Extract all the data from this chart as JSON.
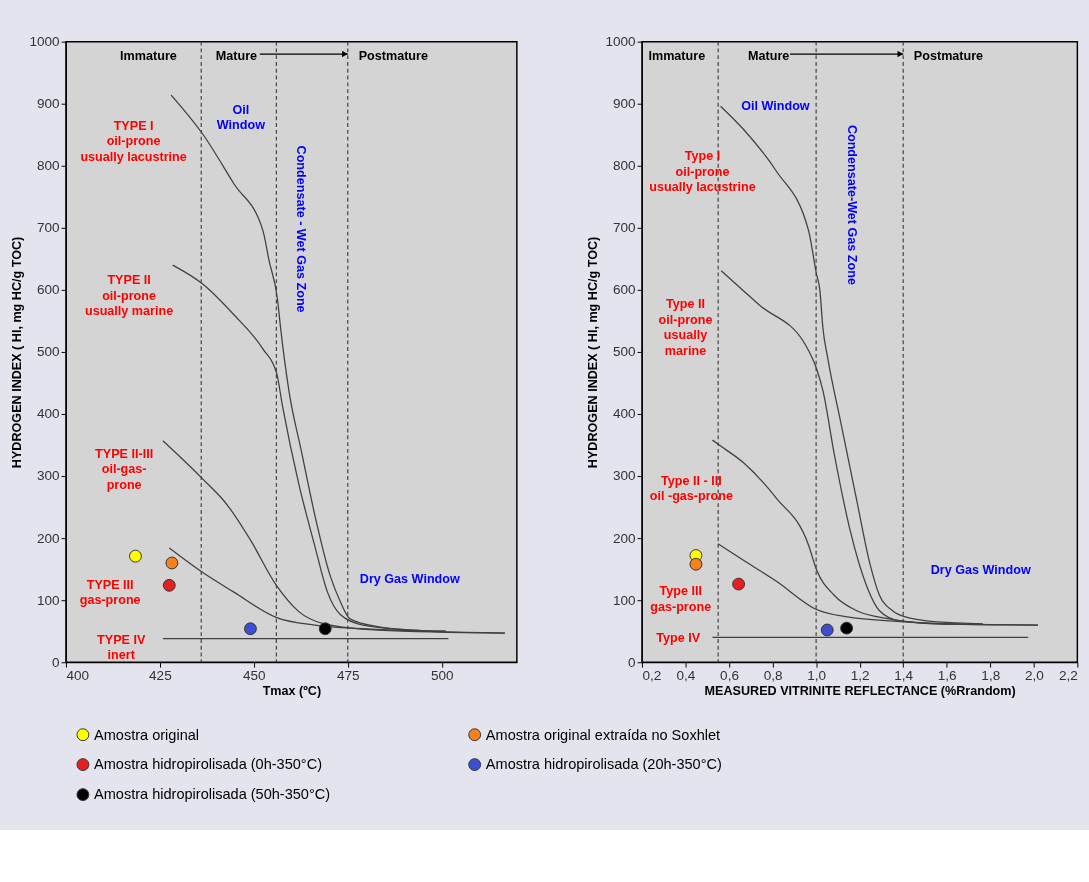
{
  "chart_data": [
    {
      "type": "line",
      "xlabel": "Tmax (ºC)",
      "ylabel": "HYDROGEN INDEX ( HI, mg HC/g TOC)",
      "xlim": [
        400,
        520
      ],
      "xticks": [
        400,
        425,
        450,
        475,
        500
      ],
      "ylim": [
        0,
        1000
      ],
      "yticks": [
        0,
        100,
        200,
        300,
        400,
        500,
        600,
        700,
        800,
        900,
        1000
      ],
      "legend": "bottom",
      "series": [
        {
          "color": "#404040",
          "marker": "none",
          "line_style": "solid",
          "x": [
            428,
            436.3,
            444.7,
            452.4,
            454.1,
            456.3,
            457.1,
            459.3,
            462.7,
            466.2,
            470.4,
            473,
            475.6,
            483.3,
            491.9,
            501
          ],
          "values": [
            914,
            852,
            771,
            696,
            646,
            585,
            540,
            439,
            339,
            238,
            138,
            98,
            70,
            57,
            52,
            50
          ]
        },
        {
          "color": "#404040",
          "marker": "none",
          "line_style": "solid",
          "x": [
            428.4,
            436.3,
            444.7,
            452.4,
            456.1,
            457.6,
            461.9,
            466.2,
            469.6,
            473,
            479,
            492,
            501
          ],
          "values": [
            640,
            610,
            560,
            505,
            465,
            414,
            289,
            188,
            113,
            77,
            60,
            52,
            50
          ]
        },
        {
          "color": "#404040",
          "marker": "none",
          "line_style": "solid",
          "x": [
            425.8,
            436.3,
            443,
            449,
            456.1,
            461.9,
            468.7,
            483,
            516.8
          ],
          "values": [
            357,
            296,
            253,
            198,
            123,
            82,
            62,
            52,
            47
          ]
        },
        {
          "color": "#404040",
          "marker": "none",
          "line_style": "solid",
          "x": [
            427.5,
            436.3,
            444.7,
            456.1,
            466.2,
            483,
            516.8
          ],
          "values": [
            184,
            145,
            113,
            72,
            60,
            53,
            47
          ]
        },
        {
          "color": "#404040",
          "marker": "none",
          "line_style": "solid",
          "x": [
            425.8,
            501.8
          ],
          "values": [
            38,
            38
          ]
        },
        {
          "type": "scatter",
          "name": "Amostra original",
          "color": "#ffff00",
          "marker": "circle",
          "x": [
            418.5
          ],
          "values": [
            171
          ]
        },
        {
          "type": "scatter",
          "name": "Amostra original extraída no Soxhlet",
          "color": "#f7801f",
          "marker": "circle",
          "x": [
            428.2
          ],
          "values": [
            160
          ]
        },
        {
          "type": "scatter",
          "name": "Amostra hidropirolisada (0h-350°C)",
          "color": "#e52020",
          "marker": "circle",
          "x": [
            427.5
          ],
          "values": [
            124
          ]
        },
        {
          "type": "scatter",
          "name": "Amostra hidropirolisada (20h-350°C)",
          "color": "#3c4fd0",
          "marker": "circle",
          "x": [
            449.1
          ],
          "values": [
            54
          ]
        },
        {
          "type": "scatter",
          "name": "Amostra hidropirolisada (50h-350°C)",
          "color": "#000000",
          "marker": "circle",
          "x": [
            469
          ],
          "values": [
            54
          ]
        }
      ],
      "ref_lines": [
        {
          "axis": "x",
          "value": 436,
          "color": "#404040",
          "line_style": "dashed"
        },
        {
          "axis": "x",
          "value": 456,
          "color": "#404040",
          "line_style": "dashed"
        },
        {
          "axis": "x",
          "value": 475,
          "color": "#404040",
          "line_style": "dashed"
        }
      ],
      "annotations": [
        "Immature",
        {
          "text": "Mature",
          "x": 475,
          "y": 980
        },
        "Postmature",
        "Oil\nWindow",
        "Condensate - Wet Gas Zone",
        "Dry Gas Window",
        "TYPE I\noil-prone\nusually lacustrine",
        "TYPE II\noil-prone\nusually marine",
        "TYPE II-III\noil-gas-\nprone",
        "TYPE III\ngas-prone",
        "TYPE IV\ninert"
      ]
    },
    {
      "type": "line",
      "xlabel": "MEASURED VITRINITE REFLECTANCE (%Rrandom)",
      "ylabel": "HYDROGEN INDEX ( HI, mg HC/g TOC)",
      "xlim": [
        0.2,
        2.2
      ],
      "xticks": [
        {
          "value": 0.2,
          "label": "0,2"
        },
        {
          "value": 0.4,
          "label": "0,4"
        },
        {
          "value": 0.6,
          "label": "0,6"
        },
        {
          "value": 0.8,
          "label": "0,8"
        },
        {
          "value": 1.0,
          "label": "1,0"
        },
        {
          "value": 1.2,
          "label": "1,2"
        },
        {
          "value": 1.4,
          "label": "1,4"
        },
        {
          "value": 1.6,
          "label": "1,6"
        },
        {
          "value": 1.8,
          "label": "1,8"
        },
        {
          "value": 2.0,
          "label": "2,0"
        },
        {
          "value": 2.2,
          "label": "2,2"
        }
      ],
      "ylim": [
        0,
        1000
      ],
      "yticks": [
        0,
        100,
        200,
        300,
        400,
        500,
        600,
        700,
        800,
        900,
        1000
      ],
      "legend": "bottom",
      "series": [
        {
          "color": "#404040",
          "marker": "none",
          "line_style": "solid",
          "x": [
            0.561,
            0.668,
            0.816,
            0.965,
            1.002,
            1.017,
            1.031,
            1.054,
            1.113,
            1.187,
            1.247,
            1.291,
            1.351,
            1.41,
            1.559,
            1.766
          ],
          "values": [
            896,
            858,
            792,
            696,
            625,
            600,
            539,
            489,
            387,
            260,
            159,
            108,
            83,
            73,
            65,
            62
          ]
        },
        {
          "color": "#404040",
          "marker": "none",
          "line_style": "solid",
          "x": [
            0.564,
            0.742,
            0.95,
            1.002,
            1.031,
            1.083,
            1.158,
            1.232,
            1.291,
            1.38,
            1.559,
            1.766
          ],
          "values": [
            631,
            575,
            512,
            473,
            438,
            336,
            210,
            123,
            83,
            67,
            62,
            61
          ]
        },
        {
          "color": "#404040",
          "marker": "none",
          "line_style": "solid",
          "x": [
            0.524,
            0.547,
            0.668,
            0.816,
            0.965,
            1.002,
            1.083,
            1.187,
            1.336,
            1.559,
            2.019
          ],
          "values": [
            358,
            352,
            321,
            265,
            189,
            149,
            108,
            83,
            70,
            62,
            60
          ]
        },
        {
          "color": "#404040",
          "marker": "none",
          "line_style": "solid",
          "x": [
            0.549,
            0.668,
            0.816,
            1.002,
            1.143,
            1.41,
            1.707,
            2.019
          ],
          "values": [
            191,
            164,
            131,
            85,
            73,
            65,
            61,
            60
          ]
        },
        {
          "color": "#404040",
          "marker": "none",
          "line_style": "solid",
          "x": [
            0.524,
            1.974
          ],
          "values": [
            40,
            40
          ]
        },
        {
          "type": "scatter",
          "name": "Amostra original",
          "color": "#ffff00",
          "marker": "circle",
          "x": [
            0.448
          ],
          "values": [
            172
          ]
        },
        {
          "type": "scatter",
          "name": "Amostra original extraída no Soxhlet",
          "color": "#f7801f",
          "marker": "circle",
          "x": [
            0.448
          ],
          "values": [
            158
          ]
        },
        {
          "type": "scatter",
          "name": "Amostra hidropirolisada (0h-350°C)",
          "color": "#e52020",
          "marker": "circle",
          "x": [
            0.644
          ],
          "values": [
            126
          ]
        },
        {
          "type": "scatter",
          "name": "Amostra hidropirolisada (20h-350°C)",
          "color": "#3c4fd0",
          "marker": "circle",
          "x": [
            1.051
          ],
          "values": [
            52
          ]
        },
        {
          "type": "scatter",
          "name": "Amostra hidropirolisada (50h-350°C)",
          "color": "#000000",
          "marker": "circle",
          "x": [
            1.14
          ],
          "values": [
            55
          ]
        }
      ],
      "ref_lines": [
        {
          "axis": "x",
          "value": 0.55,
          "color": "#404040",
          "line_style": "dashed"
        },
        {
          "axis": "x",
          "value": 1.0,
          "color": "#404040",
          "line_style": "dashed"
        },
        {
          "axis": "x",
          "value": 1.4,
          "color": "#404040",
          "line_style": "dashed"
        }
      ],
      "annotations": [
        "Immature",
        {
          "text": "Mature",
          "x": 1.4,
          "y": 980
        },
        "Postmature",
        "Oil Window",
        "Condensate-Wet Gas Zone",
        "Dry Gas Window",
        "Type I\noil-prone\nusually lacustrine",
        "Type II\noil-prone\nusually\nmarine",
        "Type II - III\noil -gas-prone",
        "Type III\ngas-prone",
        "Type IV"
      ]
    }
  ]
}
